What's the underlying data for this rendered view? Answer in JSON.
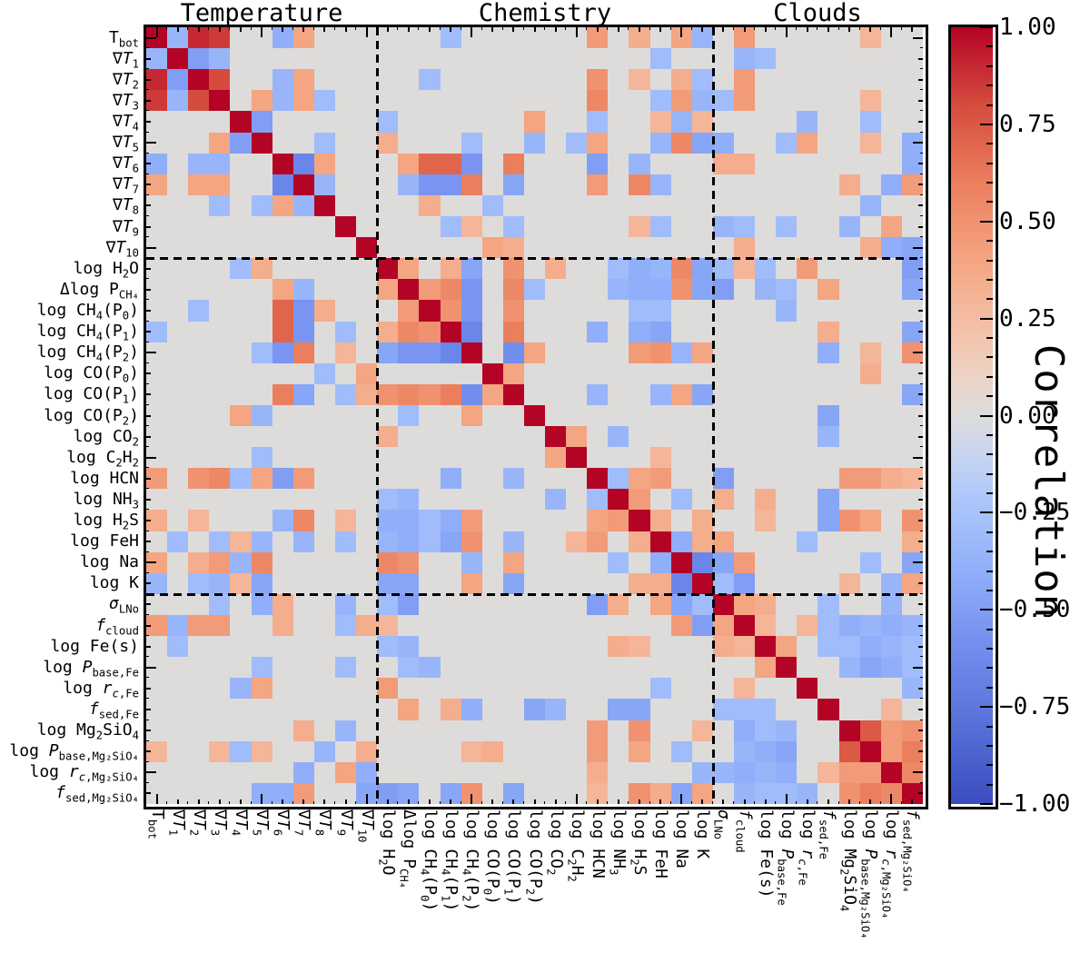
{
  "figure": {
    "section_headers": [
      {
        "label": "Temperature",
        "start": 0,
        "end": 10
      },
      {
        "label": "Chemistry",
        "start": 11,
        "end": 26
      },
      {
        "label": "Clouds",
        "start": 27,
        "end": 36
      }
    ],
    "colorbar": {
      "label": "Correlation",
      "tick_labels": [
        "1.00",
        "0.75",
        "0.50",
        "0.25",
        "0.00",
        "-0.25",
        "-0.50",
        "-0.75",
        "-1.00"
      ],
      "tick_values": [
        1,
        0.75,
        0.5,
        0.25,
        0,
        -0.25,
        -0.5,
        -0.75,
        -1
      ],
      "minor_tick_step": 0.05,
      "min": -1,
      "max": 1
    },
    "parameters": [
      {
        "name": "T_bot",
        "html": "T<sub>bot</sub>"
      },
      {
        "name": "∇T_1",
        "html": "∇<i>T</i><sub>1</sub>"
      },
      {
        "name": "∇T_2",
        "html": "∇<i>T</i><sub>2</sub>"
      },
      {
        "name": "∇T_3",
        "html": "∇<i>T</i><sub>3</sub>"
      },
      {
        "name": "∇T_4",
        "html": "∇<i>T</i><sub>4</sub>"
      },
      {
        "name": "∇T_5",
        "html": "∇<i>T</i><sub>5</sub>"
      },
      {
        "name": "∇T_6",
        "html": "∇<i>T</i><sub>6</sub>"
      },
      {
        "name": "∇T_7",
        "html": "∇<i>T</i><sub>7</sub>"
      },
      {
        "name": "∇T_8",
        "html": "∇<i>T</i><sub>8</sub>"
      },
      {
        "name": "∇T_9",
        "html": "∇<i>T</i><sub>9</sub>"
      },
      {
        "name": "∇T_10",
        "html": "∇<i>T</i><sub>10</sub>"
      },
      {
        "name": "log H2O",
        "html": "log H<sub>2</sub>O"
      },
      {
        "name": "Δlog P_CH4",
        "html": "Δlog&#8201;P<sub>CH&#8324;</sub>"
      },
      {
        "name": "log CH4(P0)",
        "html": "log CH<sub>4</sub>(P<sub>0</sub>)"
      },
      {
        "name": "log CH4(P1)",
        "html": "log CH<sub>4</sub>(P<sub>1</sub>)"
      },
      {
        "name": "log CH4(P2)",
        "html": "log CH<sub>4</sub>(P<sub>2</sub>)"
      },
      {
        "name": "log CO(P0)",
        "html": "log CO(P<sub>0</sub>)"
      },
      {
        "name": "log CO(P1)",
        "html": "log CO(P<sub>1</sub>)"
      },
      {
        "name": "log CO(P2)",
        "html": "log CO(P<sub>2</sub>)"
      },
      {
        "name": "log CO2",
        "html": "log CO<sub>2</sub>"
      },
      {
        "name": "log C2H2",
        "html": "log C<sub>2</sub>H<sub>2</sub>"
      },
      {
        "name": "log HCN",
        "html": "log HCN"
      },
      {
        "name": "log NH3",
        "html": "log NH<sub>3</sub>"
      },
      {
        "name": "log H2S",
        "html": "log H<sub>2</sub>S"
      },
      {
        "name": "log FeH",
        "html": "log FeH"
      },
      {
        "name": "log Na",
        "html": "log Na"
      },
      {
        "name": "log K",
        "html": "log K"
      },
      {
        "name": "σ_LNo",
        "html": "<i>σ</i><sub>LNo</sub>"
      },
      {
        "name": "f_cloud",
        "html": "<i>f</i><sub>cloud</sub>"
      },
      {
        "name": "log Fe(s)",
        "html": "log Fe(s)"
      },
      {
        "name": "log P_base,Fe",
        "html": "log&#8201;<i>P</i><sub>base,Fe</sub>"
      },
      {
        "name": "log r_c,Fe",
        "html": "log&#8201;<i>r</i><sub><i>c</i>,Fe</sub>"
      },
      {
        "name": "f_sed,Fe",
        "html": "<i>f</i><sub>sed,Fe</sub>"
      },
      {
        "name": "log Mg2SiO4",
        "html": "log Mg<sub>2</sub>SiO<sub>4</sub>"
      },
      {
        "name": "log P_base,Mg2SiO4",
        "html": "log&#8201;<i>P</i><sub>base,Mg&#8322;SiO&#8324;</sub>"
      },
      {
        "name": "log r_c,Mg2SiO4",
        "html": "log&#8201;<i>r</i><sub><i>c</i>,Mg&#8322;SiO&#8324;</sub>"
      },
      {
        "name": "f_sed,Mg2SiO4",
        "html": "<i>f</i><sub>sed,Mg&#8322;SiO&#8324;</sub>"
      }
    ]
  },
  "chart_data": {
    "type": "heatmap",
    "title": "",
    "xlabel": "",
    "ylabel": "",
    "colorbar_label": "Correlation",
    "value_range": [
      -1,
      1
    ],
    "categories": [
      "T_bot",
      "∇T_1",
      "∇T_2",
      "∇T_3",
      "∇T_4",
      "∇T_5",
      "∇T_6",
      "∇T_7",
      "∇T_8",
      "∇T_9",
      "∇T_10",
      "log H2O",
      "Δlog P_CH4",
      "log CH4(P0)",
      "log CH4(P1)",
      "log CH4(P2)",
      "log CO(P0)",
      "log CO(P1)",
      "log CO(P2)",
      "log CO2",
      "log C2H2",
      "log HCN",
      "log NH3",
      "log H2S",
      "log FeH",
      "log Na",
      "log K",
      "σ_LNo",
      "f_cloud",
      "log Fe(s)",
      "log P_base,Fe",
      "log r_c,Fe",
      "f_sed,Fe",
      "log Mg2SiO4",
      "log P_base,Mg2SiO4",
      "log r_c,Mg2SiO4",
      "f_sed,Mg2SiO4"
    ],
    "groups": [
      {
        "label": "Temperature",
        "indices": [
          0,
          10
        ]
      },
      {
        "label": "Chemistry",
        "indices": [
          11,
          26
        ]
      },
      {
        "label": "Clouds",
        "indices": [
          27,
          36
        ]
      }
    ],
    "group_separators_after_index": [
      10,
      26
    ],
    "diagonal_value": 1.0,
    "default_value": 0.0,
    "correlations": [
      [
        0,
        1,
        -0.35
      ],
      [
        0,
        2,
        0.9
      ],
      [
        0,
        3,
        0.85
      ],
      [
        0,
        6,
        -0.4
      ],
      [
        0,
        7,
        0.4
      ],
      [
        0,
        14,
        -0.3
      ],
      [
        0,
        21,
        0.45
      ],
      [
        0,
        23,
        0.35
      ],
      [
        0,
        25,
        0.4
      ],
      [
        0,
        26,
        -0.35
      ],
      [
        0,
        28,
        0.45
      ],
      [
        0,
        34,
        0.3
      ],
      [
        1,
        2,
        -0.5
      ],
      [
        1,
        3,
        -0.35
      ],
      [
        1,
        24,
        -0.3
      ],
      [
        1,
        28,
        -0.35
      ],
      [
        1,
        29,
        -0.3
      ],
      [
        2,
        3,
        0.8
      ],
      [
        2,
        6,
        -0.35
      ],
      [
        2,
        7,
        0.4
      ],
      [
        2,
        13,
        -0.3
      ],
      [
        2,
        21,
        0.5
      ],
      [
        2,
        23,
        0.3
      ],
      [
        2,
        25,
        0.35
      ],
      [
        2,
        26,
        -0.3
      ],
      [
        2,
        28,
        0.45
      ],
      [
        3,
        5,
        0.4
      ],
      [
        3,
        6,
        -0.35
      ],
      [
        3,
        7,
        0.4
      ],
      [
        3,
        8,
        -0.3
      ],
      [
        3,
        21,
        0.55
      ],
      [
        3,
        24,
        -0.3
      ],
      [
        3,
        25,
        0.45
      ],
      [
        3,
        26,
        -0.35
      ],
      [
        3,
        27,
        -0.3
      ],
      [
        3,
        28,
        0.45
      ],
      [
        3,
        34,
        0.3
      ],
      [
        4,
        5,
        -0.5
      ],
      [
        4,
        11,
        -0.3
      ],
      [
        4,
        18,
        0.4
      ],
      [
        4,
        21,
        -0.3
      ],
      [
        4,
        24,
        0.3
      ],
      [
        4,
        25,
        -0.35
      ],
      [
        4,
        26,
        0.3
      ],
      [
        4,
        31,
        -0.35
      ],
      [
        4,
        34,
        -0.3
      ],
      [
        5,
        8,
        -0.3
      ],
      [
        5,
        11,
        0.35
      ],
      [
        5,
        15,
        -0.3
      ],
      [
        5,
        18,
        -0.35
      ],
      [
        5,
        20,
        -0.3
      ],
      [
        5,
        21,
        0.4
      ],
      [
        5,
        24,
        -0.35
      ],
      [
        5,
        25,
        0.55
      ],
      [
        5,
        26,
        -0.45
      ],
      [
        5,
        27,
        -0.4
      ],
      [
        5,
        30,
        -0.3
      ],
      [
        5,
        31,
        0.4
      ],
      [
        5,
        34,
        0.3
      ],
      [
        5,
        36,
        -0.4
      ],
      [
        6,
        7,
        -0.65
      ],
      [
        6,
        8,
        0.4
      ],
      [
        6,
        12,
        0.4
      ],
      [
        6,
        13,
        0.7
      ],
      [
        6,
        14,
        0.7
      ],
      [
        6,
        15,
        -0.55
      ],
      [
        6,
        17,
        0.6
      ],
      [
        6,
        21,
        -0.5
      ],
      [
        6,
        23,
        -0.35
      ],
      [
        6,
        27,
        0.35
      ],
      [
        6,
        28,
        0.35
      ],
      [
        6,
        36,
        -0.4
      ],
      [
        7,
        8,
        -0.35
      ],
      [
        7,
        12,
        -0.35
      ],
      [
        7,
        13,
        -0.55
      ],
      [
        7,
        14,
        -0.55
      ],
      [
        7,
        15,
        0.6
      ],
      [
        7,
        17,
        -0.45
      ],
      [
        7,
        21,
        0.45
      ],
      [
        7,
        23,
        0.55
      ],
      [
        7,
        24,
        -0.35
      ],
      [
        7,
        33,
        0.35
      ],
      [
        7,
        35,
        -0.4
      ],
      [
        7,
        36,
        0.45
      ],
      [
        8,
        13,
        0.35
      ],
      [
        8,
        16,
        -0.3
      ],
      [
        8,
        34,
        -0.35
      ],
      [
        9,
        14,
        -0.3
      ],
      [
        9,
        15,
        0.3
      ],
      [
        9,
        17,
        -0.3
      ],
      [
        9,
        23,
        0.3
      ],
      [
        9,
        24,
        -0.3
      ],
      [
        9,
        27,
        -0.35
      ],
      [
        9,
        28,
        -0.3
      ],
      [
        9,
        30,
        -0.3
      ],
      [
        9,
        33,
        -0.35
      ],
      [
        9,
        35,
        0.4
      ],
      [
        10,
        16,
        0.4
      ],
      [
        10,
        17,
        0.35
      ],
      [
        10,
        28,
        0.35
      ],
      [
        10,
        34,
        0.35
      ],
      [
        10,
        35,
        -0.4
      ],
      [
        10,
        36,
        -0.45
      ],
      [
        11,
        12,
        0.4
      ],
      [
        11,
        14,
        0.35
      ],
      [
        11,
        15,
        -0.45
      ],
      [
        11,
        17,
        0.5
      ],
      [
        11,
        19,
        0.35
      ],
      [
        11,
        22,
        -0.3
      ],
      [
        11,
        23,
        -0.4
      ],
      [
        11,
        24,
        -0.35
      ],
      [
        11,
        25,
        0.55
      ],
      [
        11,
        26,
        -0.45
      ],
      [
        11,
        27,
        -0.3
      ],
      [
        11,
        28,
        0.3
      ],
      [
        11,
        29,
        -0.3
      ],
      [
        11,
        31,
        0.45
      ],
      [
        11,
        36,
        -0.5
      ],
      [
        12,
        13,
        0.45
      ],
      [
        12,
        14,
        0.55
      ],
      [
        12,
        15,
        -0.55
      ],
      [
        12,
        17,
        0.55
      ],
      [
        12,
        18,
        -0.3
      ],
      [
        12,
        22,
        -0.35
      ],
      [
        12,
        23,
        -0.4
      ],
      [
        12,
        24,
        -0.4
      ],
      [
        12,
        25,
        0.5
      ],
      [
        12,
        26,
        -0.45
      ],
      [
        12,
        27,
        -0.5
      ],
      [
        12,
        29,
        -0.35
      ],
      [
        12,
        30,
        -0.3
      ],
      [
        12,
        32,
        0.4
      ],
      [
        12,
        36,
        -0.45
      ],
      [
        13,
        14,
        0.5
      ],
      [
        13,
        15,
        -0.55
      ],
      [
        13,
        17,
        0.5
      ],
      [
        13,
        23,
        -0.3
      ],
      [
        13,
        24,
        -0.3
      ],
      [
        13,
        30,
        -0.35
      ],
      [
        14,
        15,
        -0.65
      ],
      [
        14,
        17,
        0.6
      ],
      [
        14,
        21,
        -0.4
      ],
      [
        14,
        23,
        -0.4
      ],
      [
        14,
        24,
        -0.45
      ],
      [
        14,
        32,
        0.35
      ],
      [
        14,
        36,
        -0.45
      ],
      [
        15,
        17,
        -0.6
      ],
      [
        15,
        18,
        0.4
      ],
      [
        15,
        23,
        0.45
      ],
      [
        15,
        24,
        0.5
      ],
      [
        15,
        25,
        -0.35
      ],
      [
        15,
        26,
        0.4
      ],
      [
        15,
        32,
        -0.4
      ],
      [
        15,
        34,
        0.3
      ],
      [
        15,
        36,
        0.5
      ],
      [
        16,
        17,
        0.4
      ],
      [
        16,
        34,
        0.35
      ],
      [
        17,
        21,
        -0.35
      ],
      [
        17,
        24,
        -0.35
      ],
      [
        17,
        25,
        0.4
      ],
      [
        17,
        26,
        -0.45
      ],
      [
        17,
        36,
        -0.45
      ],
      [
        18,
        32,
        -0.45
      ],
      [
        19,
        20,
        0.4
      ],
      [
        19,
        22,
        -0.35
      ],
      [
        19,
        32,
        -0.35
      ],
      [
        20,
        24,
        0.3
      ],
      [
        21,
        22,
        -0.3
      ],
      [
        21,
        23,
        0.4
      ],
      [
        21,
        24,
        0.45
      ],
      [
        21,
        27,
        -0.5
      ],
      [
        21,
        33,
        0.45
      ],
      [
        21,
        34,
        0.45
      ],
      [
        21,
        35,
        0.35
      ],
      [
        21,
        36,
        0.3
      ],
      [
        22,
        23,
        0.45
      ],
      [
        22,
        25,
        -0.3
      ],
      [
        22,
        27,
        0.35
      ],
      [
        22,
        29,
        0.35
      ],
      [
        22,
        32,
        -0.45
      ],
      [
        23,
        24,
        0.35
      ],
      [
        23,
        26,
        0.35
      ],
      [
        23,
        29,
        0.3
      ],
      [
        23,
        32,
        -0.45
      ],
      [
        23,
        33,
        0.5
      ],
      [
        23,
        34,
        0.4
      ],
      [
        23,
        36,
        0.5
      ],
      [
        24,
        25,
        -0.4
      ],
      [
        24,
        26,
        0.35
      ],
      [
        24,
        27,
        0.4
      ],
      [
        24,
        31,
        -0.3
      ],
      [
        24,
        36,
        0.35
      ],
      [
        25,
        26,
        -0.65
      ],
      [
        25,
        27,
        -0.45
      ],
      [
        25,
        28,
        0.45
      ],
      [
        25,
        34,
        -0.3
      ],
      [
        25,
        36,
        -0.45
      ],
      [
        26,
        27,
        -0.3
      ],
      [
        26,
        28,
        -0.5
      ],
      [
        26,
        33,
        0.3
      ],
      [
        26,
        35,
        -0.35
      ],
      [
        26,
        36,
        0.4
      ],
      [
        27,
        28,
        0.4
      ],
      [
        27,
        29,
        0.35
      ],
      [
        27,
        32,
        -0.3
      ],
      [
        27,
        35,
        -0.35
      ],
      [
        28,
        29,
        0.3
      ],
      [
        28,
        31,
        0.3
      ],
      [
        28,
        32,
        -0.3
      ],
      [
        28,
        33,
        -0.4
      ],
      [
        28,
        34,
        -0.35
      ],
      [
        28,
        35,
        -0.4
      ],
      [
        28,
        36,
        -0.35
      ],
      [
        29,
        30,
        0.4
      ],
      [
        29,
        32,
        -0.3
      ],
      [
        29,
        33,
        -0.3
      ],
      [
        29,
        34,
        -0.4
      ],
      [
        29,
        35,
        -0.35
      ],
      [
        29,
        36,
        -0.3
      ],
      [
        30,
        33,
        -0.35
      ],
      [
        30,
        34,
        -0.45
      ],
      [
        30,
        35,
        -0.4
      ],
      [
        30,
        36,
        -0.3
      ],
      [
        31,
        36,
        -0.35
      ],
      [
        32,
        35,
        0.3
      ],
      [
        33,
        34,
        0.75
      ],
      [
        33,
        35,
        0.45
      ],
      [
        33,
        36,
        0.5
      ],
      [
        34,
        35,
        0.45
      ],
      [
        34,
        36,
        0.6
      ],
      [
        35,
        36,
        0.55
      ]
    ],
    "colormap": {
      "name": "coolwarm",
      "negative_end": "#3b4cc0",
      "zero": "#dddcdb",
      "positive_end": "#b40426",
      "legend_position": "right"
    }
  }
}
